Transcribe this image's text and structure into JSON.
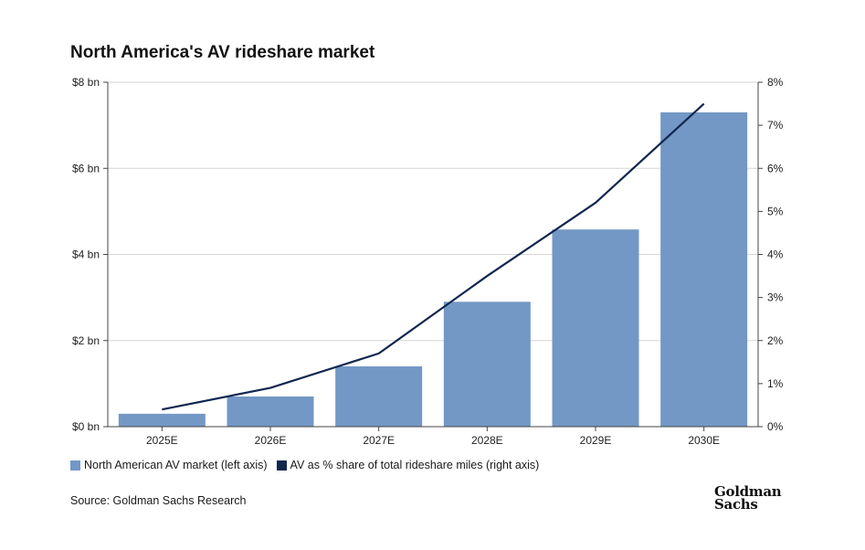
{
  "chart_data": {
    "type": "bar",
    "title": "North America's AV rideshare market",
    "categories": [
      "2025E",
      "2026E",
      "2027E",
      "2028E",
      "2029E",
      "2030E"
    ],
    "series": [
      {
        "name": "North American AV market (left axis)",
        "type": "bar",
        "axis": "left",
        "color": "#7398c5",
        "values": [
          0.3,
          0.7,
          1.4,
          2.9,
          4.58,
          7.3
        ]
      },
      {
        "name": "AV as % share of total rideshare miles (right axis)",
        "type": "line",
        "axis": "right",
        "color": "#10264f",
        "values": [
          0.4,
          0.9,
          1.7,
          3.5,
          5.2,
          7.5
        ]
      }
    ],
    "left_axis": {
      "ylim": [
        0,
        8
      ],
      "ticks": [
        0,
        2,
        4,
        6,
        8
      ],
      "tick_labels": [
        "$0 bn",
        "$2 bn",
        "$4 bn",
        "$6 bn",
        "$8 bn"
      ]
    },
    "right_axis": {
      "ylim": [
        0,
        8
      ],
      "ticks": [
        0,
        1,
        2,
        3,
        4,
        5,
        6,
        7,
        8
      ],
      "tick_labels": [
        "0%",
        "1%",
        "2%",
        "3%",
        "4%",
        "5%",
        "6%",
        "7%",
        "8%"
      ]
    },
    "grid": true,
    "legend_position": "bottom-left"
  },
  "source": "Source: Goldman Sachs Research",
  "logo": {
    "line1": "Goldman",
    "line2": "Sachs"
  }
}
